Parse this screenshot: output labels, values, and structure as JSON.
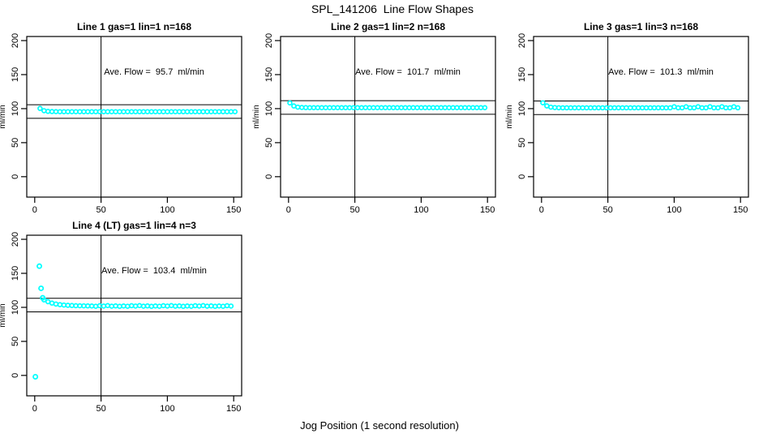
{
  "figure": {
    "title": "SPL_141206  Line Flow Shapes",
    "xlabel": "Jog Position (1 second resolution)"
  },
  "colors": {
    "point": "#00FFFF",
    "axis": "#000000",
    "background": "#FFFFFF"
  },
  "chart_data": {
    "type": "scatter",
    "title": "SPL_141206  Line Flow Shapes",
    "xlabel": "Jog Position (1 second resolution)",
    "ylabel": "ml/min",
    "xlim": [
      -6,
      156
    ],
    "ylim": [
      -30,
      206
    ],
    "xticks": [
      0,
      50,
      100,
      150
    ],
    "yticks": [
      0,
      50,
      100,
      150,
      200
    ],
    "grid": false,
    "legend": null,
    "marker": "open-circle",
    "panels": [
      {
        "title": "Line 1 gas=1 lin=1 n=168",
        "row": 0,
        "col": 0,
        "n": 168,
        "ave_flow": 95.7,
        "annotation": "Ave. Flow =  95.7  ml/min",
        "annotation_xy": [
          90,
          150
        ],
        "ref_h": [
          105.7,
          85.7
        ],
        "ref_v": 50,
        "series": {
          "x_start": 4,
          "x_step": 3,
          "y": [
            100.3,
            97.0,
            96.0,
            95.7,
            95.6,
            95.5,
            95.5,
            95.5,
            95.5,
            95.5,
            95.5,
            95.5,
            95.5,
            95.5,
            95.5,
            95.5,
            95.5,
            95.5,
            95.5,
            95.5,
            95.5,
            95.5,
            95.5,
            95.5,
            95.5,
            95.5,
            95.5,
            95.5,
            95.5,
            95.5,
            95.5,
            95.5,
            95.5,
            95.5,
            95.5,
            95.5,
            95.5,
            95.5,
            95.5,
            95.5,
            95.5,
            95.5,
            95.5,
            95.5,
            95.5,
            95.5,
            95.5,
            95.5,
            95.5,
            95.5
          ]
        },
        "outliers": []
      },
      {
        "title": "Line 2 gas=1 lin=2 n=168",
        "row": 0,
        "col": 1,
        "n": 168,
        "ave_flow": 101.7,
        "annotation": "Ave. Flow =  101.7  ml/min",
        "annotation_xy": [
          90,
          150
        ],
        "ref_h": [
          111.7,
          91.7
        ],
        "ref_v": 50,
        "series": {
          "x_start": 1,
          "x_step": 3,
          "y": [
            108.4,
            103.9,
            102.2,
            101.7,
            101.5,
            101.4,
            101.4,
            101.4,
            101.4,
            101.4,
            101.4,
            101.4,
            101.4,
            101.4,
            101.4,
            101.4,
            101.4,
            101.4,
            101.4,
            101.4,
            101.4,
            101.4,
            101.4,
            101.4,
            101.4,
            101.4,
            101.4,
            101.4,
            101.4,
            101.4,
            101.4,
            101.4,
            101.4,
            101.4,
            101.4,
            101.4,
            101.4,
            101.4,
            101.4,
            101.4,
            101.4,
            101.4,
            101.4,
            101.4,
            101.4,
            101.4,
            101.4,
            101.4,
            101.4,
            101.4
          ]
        },
        "outliers": []
      },
      {
        "title": "Line 3 gas=1 lin=3 n=168",
        "row": 0,
        "col": 2,
        "n": 168,
        "ave_flow": 101.3,
        "annotation": "Ave. Flow =  101.3  ml/min",
        "annotation_xy": [
          90,
          150
        ],
        "ref_h": [
          111.3,
          91.3
        ],
        "ref_v": 50,
        "series": {
          "x_start": 1,
          "x_step": 3,
          "y": [
            108.6,
            104.0,
            102.2,
            101.6,
            101.3,
            101.2,
            101.2,
            101.2,
            101.2,
            101.2,
            101.2,
            101.2,
            101.2,
            101.2,
            101.2,
            101.2,
            101.2,
            101.2,
            101.2,
            101.2,
            101.2,
            101.2,
            101.2,
            101.2,
            101.2,
            101.2,
            101.2,
            101.2,
            101.2,
            101.2,
            101.2,
            101.2,
            101.2,
            102.8,
            101.2,
            101.2,
            102.8,
            101.2,
            101.2,
            102.8,
            101.2,
            101.2,
            102.8,
            101.2,
            101.2,
            102.8,
            101.2,
            101.2,
            102.8,
            101.2
          ]
        },
        "outliers": []
      },
      {
        "title": "Line 4 (LT) gas=1 lin=4 n=3",
        "row": 1,
        "col": 0,
        "n": 3,
        "ave_flow": 103.4,
        "annotation": "Ave. Flow =  103.4  ml/min",
        "annotation_xy": [
          90,
          150
        ],
        "ref_h": [
          113.4,
          93.4
        ],
        "ref_v": 50,
        "series": {
          "x_start": 7,
          "x_step": 3,
          "y": [
            111.0,
            108.3,
            106.3,
            104.9,
            104.0,
            103.4,
            103.0,
            102.7,
            102.4,
            102.3,
            102.2,
            102.1,
            102.0,
            101.6,
            102.4,
            101.9,
            102.6,
            101.7,
            102.1,
            101.5,
            102.0,
            101.6,
            102.4,
            101.9,
            102.6,
            101.7,
            102.1,
            101.5,
            102.0,
            101.6,
            102.4,
            101.9,
            102.6,
            101.7,
            102.1,
            101.5,
            102.0,
            101.6,
            102.4,
            101.9,
            102.6,
            101.7,
            102.1,
            101.5,
            102.0,
            101.6,
            102.4,
            101.9
          ]
        },
        "outliers": [
          [
            0.5,
            -2.0
          ],
          [
            3.5,
            160.5
          ],
          [
            4.8,
            128.0
          ],
          [
            6.0,
            114.0
          ]
        ]
      }
    ]
  }
}
